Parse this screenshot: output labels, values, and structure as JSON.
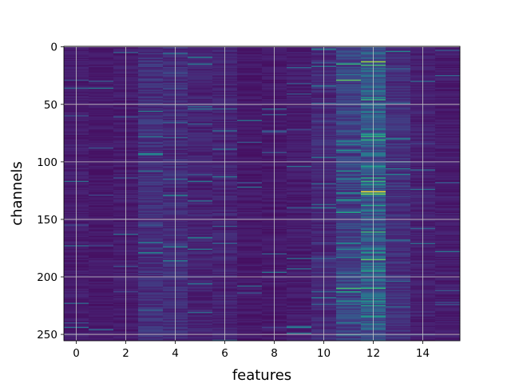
{
  "chart_data": {
    "type": "heatmap",
    "title": "",
    "xlabel": "features",
    "ylabel": "channels",
    "x_range": [
      -0.5,
      15.5
    ],
    "y_range": [
      -0.5,
      255.5
    ],
    "y_inverted": true,
    "x_ticks": [
      0,
      2,
      4,
      6,
      8,
      10,
      12,
      14
    ],
    "y_ticks": [
      0,
      50,
      100,
      150,
      200,
      250
    ],
    "grid": true,
    "colormap": "viridis",
    "n_rows": 256,
    "n_cols": 16,
    "column_baseline": [
      0.08,
      0.07,
      0.08,
      0.14,
      0.13,
      0.1,
      0.1,
      0.07,
      0.07,
      0.08,
      0.12,
      0.2,
      0.28,
      0.14,
      0.09,
      0.08
    ],
    "highlights": [
      {
        "col": 11,
        "row": 15,
        "value": 0.65
      },
      {
        "col": 12,
        "row": 13,
        "value": 0.85
      },
      {
        "col": 12,
        "row": 16,
        "value": 0.7
      },
      {
        "col": 11,
        "row": 29,
        "value": 0.75
      },
      {
        "col": 12,
        "row": 78,
        "value": 0.65
      },
      {
        "col": 12,
        "row": 104,
        "value": 0.55
      },
      {
        "col": 12,
        "row": 120,
        "value": 0.55
      },
      {
        "col": 12,
        "row": 126,
        "value": 1.0
      },
      {
        "col": 12,
        "row": 128,
        "value": 0.8
      },
      {
        "col": 12,
        "row": 185,
        "value": 0.75
      },
      {
        "col": 12,
        "row": 195,
        "value": 0.6
      },
      {
        "col": 11,
        "row": 210,
        "value": 0.7
      },
      {
        "col": 11,
        "row": 213,
        "value": 0.6
      },
      {
        "col": 10,
        "row": 2,
        "value": 0.45
      },
      {
        "col": 5,
        "row": 166,
        "value": 0.45
      },
      {
        "col": 3,
        "row": 170,
        "value": 0.4
      },
      {
        "col": 4,
        "row": 115,
        "value": 0.35
      },
      {
        "col": 4,
        "row": 66,
        "value": 0.3
      }
    ]
  },
  "colors": {
    "background": "#ffffff",
    "grid": "#c8c8c8",
    "axis": "#000000"
  }
}
